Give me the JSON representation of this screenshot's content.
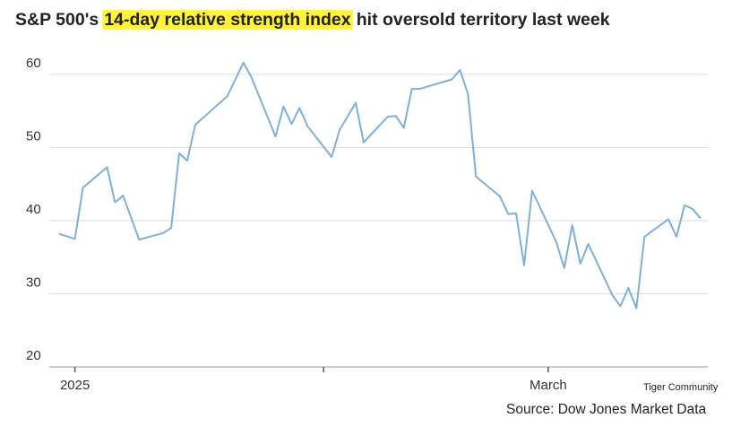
{
  "chart_data": {
    "type": "line",
    "title": [
      "S&P 500's",
      "14-day relative strength index",
      "hit oversold territory last week"
    ],
    "title_highlight": 1,
    "highlight_color": "#fff23a",
    "source": "Source: Dow Jones Market Data",
    "watermark": "Tiger Community",
    "color": "#7fb0d8",
    "grid": true,
    "x": [
      -2,
      0,
      1,
      4,
      5,
      6,
      8,
      11,
      12,
      13,
      14,
      15,
      19,
      21,
      22,
      25,
      26,
      27,
      28,
      29,
      32,
      33,
      35,
      36,
      39,
      40,
      41,
      42,
      43,
      47,
      48,
      49,
      50,
      53,
      54,
      55,
      56,
      57,
      60,
      61,
      62,
      63,
      64,
      67,
      68,
      69,
      70,
      71,
      74,
      75,
      76,
      77,
      78
    ],
    "values": [
      38.2,
      37.5,
      44.5,
      47.3,
      42.5,
      43.4,
      37.4,
      38.3,
      39.0,
      49.2,
      48.2,
      53.1,
      57.0,
      61.6,
      59.6,
      51.5,
      55.6,
      53.2,
      55.4,
      52.9,
      48.7,
      52.4,
      56.1,
      50.7,
      54.2,
      54.3,
      52.7,
      58.0,
      58.0,
      59.3,
      60.6,
      57.3,
      46.0,
      43.3,
      40.9,
      41.0,
      33.9,
      44.1,
      37.1,
      33.5,
      39.4,
      34.1,
      36.8,
      29.8,
      28.3,
      30.8,
      28.0,
      37.8,
      40.2,
      37.8,
      42.1,
      41.6,
      40.3
    ],
    "xlim": [
      -3.2,
      78.9
    ],
    "xticks": [
      {
        "value": 0,
        "label": "2025"
      },
      {
        "value": 31,
        "label": null
      },
      {
        "value": 59,
        "label": "March"
      }
    ],
    "ylim": [
      20,
      62.8
    ],
    "yticks": [
      20,
      30,
      40,
      50,
      60
    ]
  }
}
